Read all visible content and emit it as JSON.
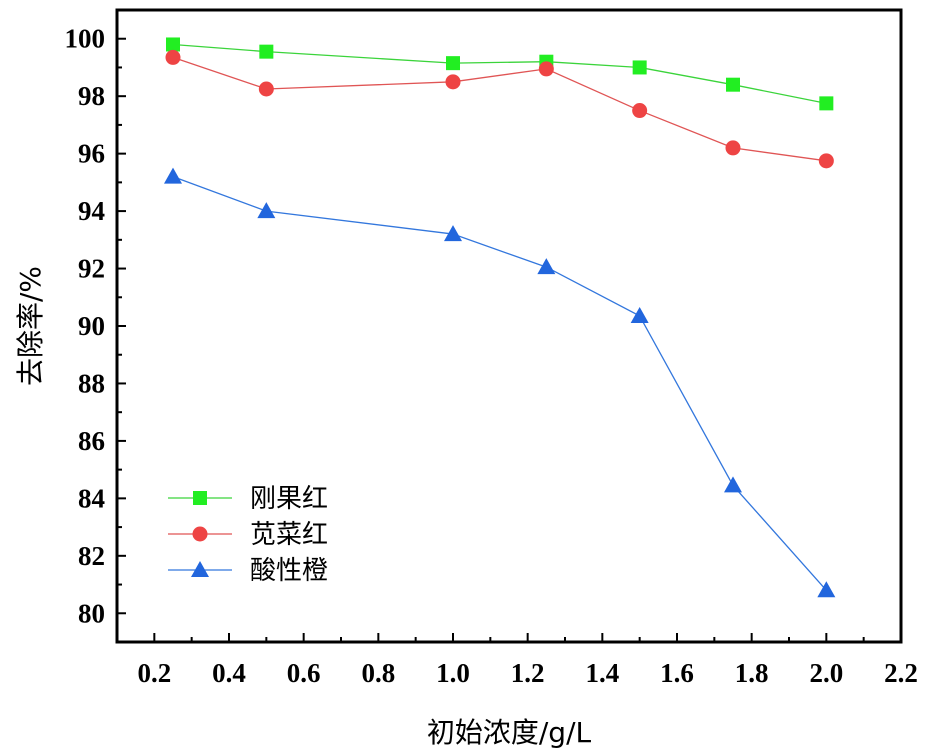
{
  "chart_data": {
    "type": "line",
    "xlabel": "初始浓度/g/L",
    "ylabel": "去除率/%",
    "xlim": [
      0.1,
      2.2
    ],
    "ylim": [
      79,
      101
    ],
    "x_ticks": [
      "0.2",
      "0.4",
      "0.6",
      "0.8",
      "1.0",
      "1.2",
      "1.4",
      "1.6",
      "1.8",
      "2.0",
      "2.2"
    ],
    "y_ticks": [
      "80",
      "82",
      "84",
      "86",
      "88",
      "90",
      "92",
      "94",
      "96",
      "98",
      "100"
    ],
    "x": [
      0.25,
      0.5,
      1.0,
      1.25,
      1.5,
      1.75,
      2.0
    ],
    "legend_position": "bottom-left",
    "series": [
      {
        "name": "刚果红",
        "marker": "square",
        "color": "#22ee22",
        "line_color": "#3bd43b",
        "values": [
          99.8,
          99.55,
          99.15,
          99.2,
          99.0,
          98.4,
          97.75
        ]
      },
      {
        "name": "苋菜红",
        "marker": "circle",
        "color": "#ee4444",
        "line_color": "#e05555",
        "values": [
          99.35,
          98.25,
          98.5,
          98.95,
          97.5,
          96.2,
          95.75
        ]
      },
      {
        "name": "酸性橙",
        "marker": "triangle",
        "color": "#2266dd",
        "line_color": "#3377dd",
        "values": [
          95.2,
          94.0,
          93.2,
          92.05,
          90.35,
          84.45,
          80.8
        ]
      }
    ]
  }
}
